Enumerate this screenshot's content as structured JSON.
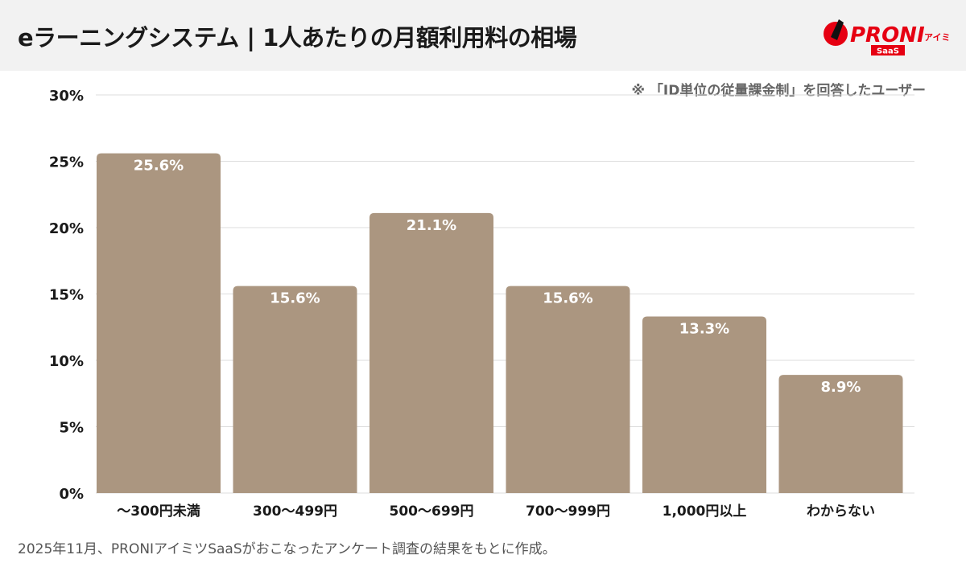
{
  "header": {
    "title": "eラーニングシステム | 1人あたりの月額利用料の相場",
    "logo_text": "PRONIアイミツ SaaS"
  },
  "note": "※ 「ID単位の従量課金制」を回答したユーザー",
  "footer": "2025年11月、PRONIアイミツSaaSがおこなったアンケート調査の結果をもとに作成。",
  "colors": {
    "bar": "#ab9680",
    "grid": "#dddddd",
    "brand": "#e60012"
  },
  "chart_data": {
    "type": "bar",
    "categories": [
      "〜300円未満",
      "300〜499円",
      "500〜699円",
      "700〜999円",
      "1,000円以上",
      "わからない"
    ],
    "values": [
      25.6,
      15.6,
      21.1,
      15.6,
      13.3,
      8.9
    ],
    "data_labels": [
      "25.6%",
      "15.6%",
      "21.1%",
      "15.6%",
      "13.3%",
      "8.9%"
    ],
    "ylim": [
      0,
      30
    ],
    "yticks": [
      "0%",
      "5%",
      "10%",
      "15%",
      "20%",
      "25%",
      "30%"
    ],
    "grid": true
  }
}
